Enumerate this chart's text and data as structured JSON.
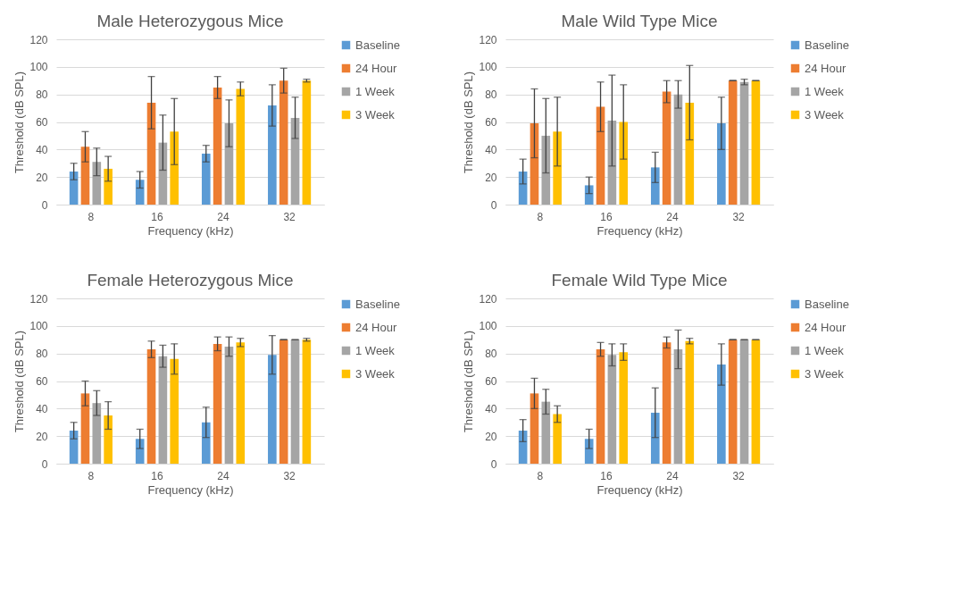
{
  "chart_data": [
    {
      "type": "bar",
      "title": "Male Heterozygous Mice",
      "xlabel": "Frequency (kHz)",
      "ylabel": "Threshold (dB SPL)",
      "categories": [
        "8",
        "16",
        "24",
        "32"
      ],
      "ylim": [
        0,
        120
      ],
      "yticks": [
        0,
        20,
        40,
        60,
        80,
        100,
        120
      ],
      "grid": "y",
      "legend": "right",
      "series": [
        {
          "name": "Baseline",
          "color": "#5b9bd5",
          "values": [
            24,
            18,
            37,
            72
          ],
          "errors": [
            6,
            6,
            6,
            15
          ]
        },
        {
          "name": "24 Hour",
          "color": "#ed7d31",
          "values": [
            42,
            74,
            85,
            90
          ],
          "errors": [
            11,
            19,
            8,
            9
          ]
        },
        {
          "name": "1 Week",
          "color": "#a5a5a5",
          "values": [
            31,
            45,
            59,
            63
          ],
          "errors": [
            10,
            20,
            17,
            15
          ]
        },
        {
          "name": "3 Week",
          "color": "#ffc000",
          "values": [
            26,
            53,
            84,
            90
          ],
          "errors": [
            9,
            24,
            5,
            1
          ]
        }
      ]
    },
    {
      "type": "bar",
      "title": "Male Wild Type Mice",
      "xlabel": "Frequency (kHz)",
      "ylabel": "Threshold (dB SPL)",
      "categories": [
        "8",
        "16",
        "24",
        "32"
      ],
      "ylim": [
        0,
        120
      ],
      "yticks": [
        0,
        20,
        40,
        60,
        80,
        100,
        120
      ],
      "grid": "y",
      "legend": "right",
      "series": [
        {
          "name": "Baseline",
          "color": "#5b9bd5",
          "values": [
            24,
            14,
            27,
            59
          ],
          "errors": [
            9,
            6,
            11,
            19
          ]
        },
        {
          "name": "24 Hour",
          "color": "#ed7d31",
          "values": [
            59,
            71,
            82,
            90
          ],
          "errors": [
            25,
            18,
            8,
            0
          ]
        },
        {
          "name": "1 Week",
          "color": "#a5a5a5",
          "values": [
            50,
            61,
            80,
            89
          ],
          "errors": [
            27,
            33,
            10,
            2
          ]
        },
        {
          "name": "3 Week",
          "color": "#ffc000",
          "values": [
            53,
            60,
            74,
            90
          ],
          "errors": [
            25,
            27,
            27,
            0
          ]
        }
      ]
    },
    {
      "type": "bar",
      "title": "Female Heterozygous Mice",
      "xlabel": "Frequency (kHz)",
      "ylabel": "Threshold (dB SPL)",
      "categories": [
        "8",
        "16",
        "24",
        "32"
      ],
      "ylim": [
        0,
        120
      ],
      "yticks": [
        0,
        20,
        40,
        60,
        80,
        100,
        120
      ],
      "grid": "y",
      "legend": "right",
      "series": [
        {
          "name": "Baseline",
          "color": "#5b9bd5",
          "values": [
            24,
            18,
            30,
            79
          ],
          "errors": [
            6,
            7,
            11,
            14
          ]
        },
        {
          "name": "24 Hour",
          "color": "#ed7d31",
          "values": [
            51,
            83,
            87,
            90
          ],
          "errors": [
            9,
            6,
            5,
            0
          ]
        },
        {
          "name": "1 Week",
          "color": "#a5a5a5",
          "values": [
            44,
            78,
            85,
            90
          ],
          "errors": [
            9,
            8,
            7,
            0
          ]
        },
        {
          "name": "3 Week",
          "color": "#ffc000",
          "values": [
            35,
            76,
            88,
            90
          ],
          "errors": [
            10,
            11,
            3,
            1
          ]
        }
      ]
    },
    {
      "type": "bar",
      "title": "Female Wild Type Mice",
      "xlabel": "Frequency (kHz)",
      "ylabel": "Threshold (dB SPL)",
      "categories": [
        "8",
        "16",
        "24",
        "32"
      ],
      "ylim": [
        0,
        120
      ],
      "yticks": [
        0,
        20,
        40,
        60,
        80,
        100,
        120
      ],
      "grid": "y",
      "legend": "right",
      "series": [
        {
          "name": "Baseline",
          "color": "#5b9bd5",
          "values": [
            24,
            18,
            37,
            72
          ],
          "errors": [
            8,
            7,
            18,
            15
          ]
        },
        {
          "name": "24 Hour",
          "color": "#ed7d31",
          "values": [
            51,
            83,
            88,
            90
          ],
          "errors": [
            11,
            5,
            4,
            0
          ]
        },
        {
          "name": "1 Week",
          "color": "#a5a5a5",
          "values": [
            45,
            79,
            83,
            90
          ],
          "errors": [
            9,
            8,
            14,
            0
          ]
        },
        {
          "name": "3 Week",
          "color": "#ffc000",
          "values": [
            36,
            81,
            89,
            90
          ],
          "errors": [
            6,
            6,
            2,
            0
          ]
        }
      ]
    }
  ]
}
